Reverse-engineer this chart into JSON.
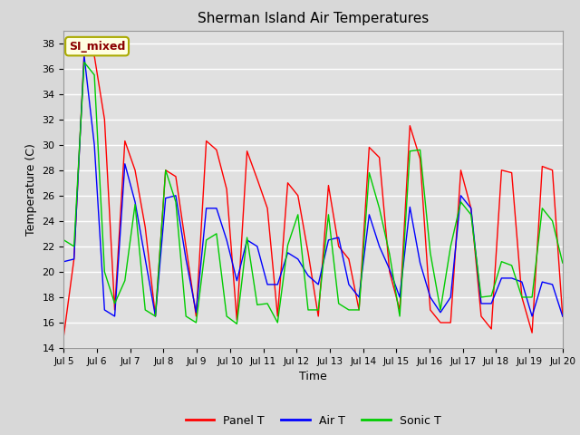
{
  "title": "Sherman Island Air Temperatures",
  "xlabel": "Time",
  "ylabel": "Temperature (C)",
  "ylim": [
    14,
    39
  ],
  "yticks": [
    14,
    16,
    18,
    20,
    22,
    24,
    26,
    28,
    30,
    32,
    34,
    36,
    38
  ],
  "fig_facecolor": "#d8d8d8",
  "axes_facecolor": "#e0e0e0",
  "annotation_text": "SI_mixed",
  "annotation_color": "#8B0000",
  "annotation_bg": "#ffffe0",
  "annotation_border": "#aaaa00",
  "line_colors": {
    "panel": "#ff0000",
    "air": "#0000ff",
    "sonic": "#00cc00"
  },
  "legend_labels": [
    "Panel T",
    "Air T",
    "Sonic T"
  ],
  "x_tick_labels": [
    "Jul 5",
    "Jul 6",
    "Jul 7",
    "Jul 8",
    "Jul 9",
    "Jul 10",
    "Jul 11",
    "Jul 12",
    "Jul 13",
    "Jul 14",
    "Jul 15",
    "Jul 16",
    "Jul 17",
    "Jul 18",
    "Jul 19",
    "Jul 20"
  ],
  "panel_T": [
    15.0,
    21.0,
    37.2,
    37.0,
    32.0,
    17.0,
    30.3,
    28.0,
    23.5,
    16.5,
    28.0,
    27.5,
    22.0,
    16.5,
    30.3,
    29.6,
    26.5,
    16.2,
    29.5,
    27.3,
    25.0,
    16.5,
    27.0,
    26.0,
    21.5,
    16.5,
    26.8,
    22.0,
    21.0,
    17.0,
    29.8,
    29.0,
    20.0,
    17.0,
    31.5,
    28.9,
    17.0,
    16.0,
    16.0,
    28.0,
    25.0,
    16.5,
    15.5,
    28.0,
    27.8,
    18.0,
    15.2,
    28.3,
    28.0,
    16.5
  ],
  "air_T": [
    20.8,
    21.0,
    37.0,
    30.0,
    17.0,
    16.5,
    28.5,
    25.5,
    21.0,
    16.5,
    25.8,
    26.0,
    21.0,
    16.8,
    25.0,
    25.0,
    22.5,
    19.3,
    22.5,
    22.0,
    19.0,
    19.0,
    21.5,
    21.0,
    19.7,
    19.0,
    22.5,
    22.7,
    19.0,
    18.0,
    24.5,
    22.0,
    20.2,
    18.0,
    25.1,
    20.7,
    18.0,
    16.8,
    18.0,
    26.0,
    25.0,
    17.5,
    17.5,
    19.5,
    19.5,
    19.2,
    16.5,
    19.2,
    19.0,
    16.5
  ],
  "sonic_T": [
    22.5,
    22.0,
    36.5,
    35.5,
    20.0,
    17.5,
    19.3,
    25.3,
    17.0,
    16.5,
    28.0,
    25.5,
    16.5,
    16.0,
    22.5,
    23.0,
    16.5,
    15.9,
    22.7,
    17.4,
    17.5,
    16.0,
    22.1,
    24.5,
    17.0,
    17.0,
    24.5,
    17.5,
    17.0,
    17.0,
    27.8,
    25.0,
    21.4,
    16.5,
    29.5,
    29.6,
    21.5,
    17.0,
    22.0,
    25.5,
    24.5,
    18.0,
    18.1,
    20.8,
    20.5,
    18.0,
    18.0,
    25.0,
    24.0,
    20.7
  ]
}
